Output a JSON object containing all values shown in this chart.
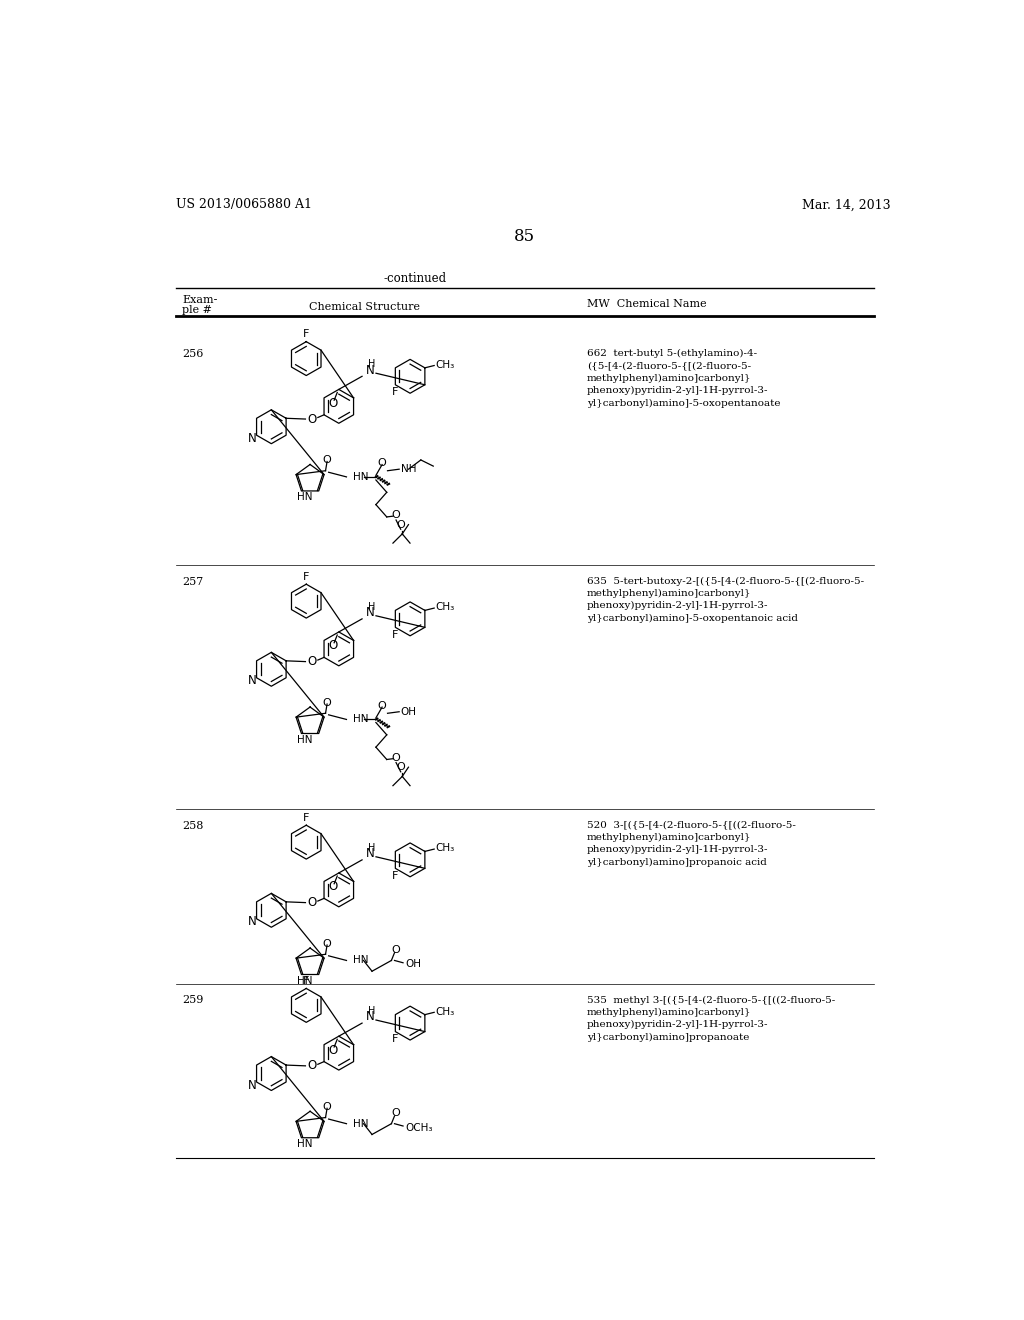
{
  "page_number": "85",
  "patent_number": "US 2013/0065880 A1",
  "patent_date": "Mar. 14, 2013",
  "continued_text": "-continued",
  "background_color": "#ffffff",
  "entries": [
    {
      "example": "256",
      "mw": "662",
      "name": "tert-butyl 5-(ethylamino)-4-\n({5-[4-(2-fluoro-5-{[(2-fluoro-5-\nmethylphenyl)amino]carbonyl}\nphenoxy)pyridin-2-yl]-1H-pyrrol-3-\nyl}carbonyl)amino]-5-oxopentanoate"
    },
    {
      "example": "257",
      "mw": "635",
      "name": "5-tert-butoxy-2-[({5-[4-(2-fluoro-5-{[(2-fluoro-5-\nmethylphenyl)amino]carbonyl}\nphenoxy)pyridin-2-yl]-1H-pyrrol-3-\nyl}carbonyl)amino]-5-oxopentanoic acid"
    },
    {
      "example": "258",
      "mw": "520",
      "name": "3-[({5-[4-(2-fluoro-5-{[((2-fluoro-5-\nmethylphenyl)amino]carbonyl}\nphenoxy)pyridin-2-yl]-1H-pyrrol-3-\nyl}carbonyl)amino]propanoic acid"
    },
    {
      "example": "259",
      "mw": "535",
      "name": "methyl 3-[({5-[4-(2-fluoro-5-{[((2-fluoro-5-\nmethylphenyl)amino]carbonyl}\nphenoxy)pyridin-2-yl]-1H-pyrrol-3-\nyl}carbonyl)amino]propanoate"
    }
  ]
}
